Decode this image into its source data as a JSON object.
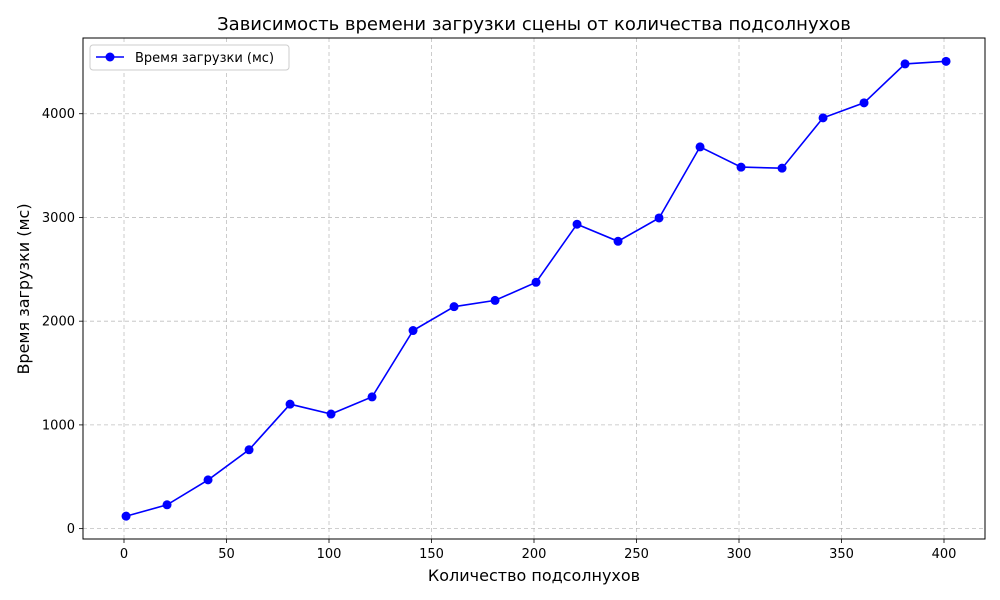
{
  "chart_data": {
    "type": "line",
    "title": "Зависимость времени загрузки сцены от количества подсолнухов",
    "xlabel": "Количество подсолнухов",
    "ylabel": "Время загрузки (мс)",
    "xlim": [
      -20,
      420
    ],
    "ylim": [
      -100,
      4730
    ],
    "xticks": [
      0,
      50,
      100,
      150,
      200,
      250,
      300,
      350,
      400
    ],
    "yticks": [
      0,
      1000,
      2000,
      3000,
      4000
    ],
    "grid": true,
    "legend_position": "top-left",
    "series": [
      {
        "name": "Время загрузки (мс)",
        "color": "#0000ff",
        "marker": "circle",
        "x": [
          1,
          21,
          41,
          61,
          81,
          101,
          121,
          141,
          161,
          181,
          201,
          221,
          241,
          261,
          281,
          301,
          321,
          341,
          361,
          381,
          401
        ],
        "y": [
          120,
          230,
          470,
          760,
          1200,
          1105,
          1270,
          1910,
          2140,
          2200,
          2375,
          2935,
          2770,
          2995,
          3680,
          3485,
          3475,
          3960,
          4105,
          4480,
          4505
        ]
      }
    ]
  }
}
